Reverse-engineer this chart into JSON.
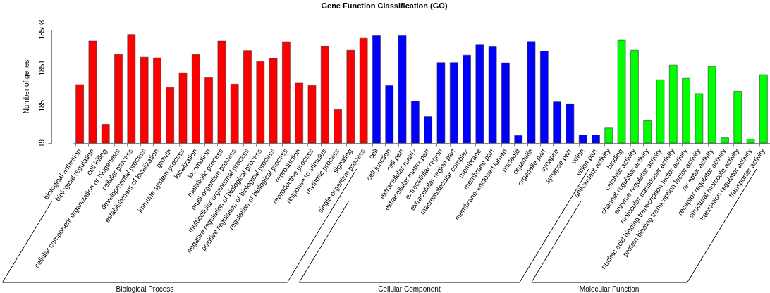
{
  "chart_data": {
    "type": "bar",
    "title": "Gene Function Classification (GO)",
    "ylabel": "Number of genes",
    "categories": [
      "biological adhesion",
      "biological regulation",
      "cell killing",
      "cellular component organization or biogenesis",
      "cellular process",
      "developmental process",
      "establishment of localization",
      "growth",
      "immune system process",
      "localization",
      "locomotion",
      "metabolic process",
      "multi-organism process",
      "multicellular organismal process",
      "negative regulation of biological process",
      "positive regulation of biological process",
      "regulation of biological process",
      "reproduction",
      "reproductive process",
      "response to stimulus",
      "rhythmic process",
      "signaling",
      "single-organism process",
      "cell",
      "cell junction",
      "cell part",
      "extracellular matrix",
      "extracellular matrix part",
      "extracellular region",
      "extracellular region part",
      "macromolecular complex",
      "membrane",
      "membrane part",
      "membrane-enclosed lumen",
      "nucleoid",
      "organelle",
      "organelle part",
      "synapse",
      "synapse part",
      "virion",
      "virion part",
      "antioxidant activity",
      "binding",
      "catalytic activity",
      "channel regulator activity",
      "enzyme regulator activity",
      "molecular transducer activity",
      "nucleic acid binding transcription factor activity",
      "protein binding transcription factor activity",
      "receptor activity",
      "receptor regulator activity",
      "structural molecule activity",
      "translation regulator activity",
      "transporter activity"
    ],
    "series": [
      {
        "color": "#ff0000",
        "values": [
          660,
          9300,
          59,
          4100,
          13900,
          3470,
          3330,
          550,
          1350,
          4100,
          990,
          9300,
          680,
          5200,
          2680,
          3200,
          8900,
          720,
          620,
          6600,
          145,
          5300,
          11000,
          null,
          null,
          null,
          null,
          null,
          null,
          null,
          null,
          null,
          null,
          null,
          null,
          null,
          null,
          null,
          null,
          null,
          null,
          null,
          null,
          null,
          null,
          null,
          null,
          null,
          null,
          null,
          null,
          null,
          null,
          null
        ]
      },
      {
        "color": "#0000ff",
        "values": [
          null,
          null,
          null,
          null,
          null,
          null,
          null,
          null,
          null,
          null,
          null,
          null,
          null,
          null,
          null,
          null,
          null,
          null,
          null,
          null,
          null,
          null,
          null,
          12900,
          620,
          12900,
          240,
          94,
          2500,
          2500,
          3950,
          7300,
          6500,
          2460,
          30,
          9000,
          5000,
          230,
          205,
          31,
          31,
          null,
          null,
          null,
          null,
          null,
          null,
          null,
          null,
          null,
          null,
          null,
          null,
          null
        ]
      },
      {
        "color": "#00ff00",
        "values": [
          null,
          null,
          null,
          null,
          null,
          null,
          null,
          null,
          null,
          null,
          null,
          null,
          null,
          null,
          null,
          null,
          null,
          null,
          null,
          null,
          null,
          null,
          null,
          null,
          null,
          null,
          null,
          null,
          null,
          null,
          null,
          null,
          null,
          null,
          null,
          null,
          null,
          null,
          null,
          null,
          null,
          47,
          9700,
          5300,
          73,
          880,
          2170,
          960,
          380,
          1990,
          26,
          440,
          24,
          1200
        ]
      }
    ],
    "annotations": [
      "Biological Process",
      "Cellular Component",
      "Molecular Function"
    ],
    "ylim": [
      19,
      18508
    ],
    "yticks": [
      19,
      185,
      1851,
      18508
    ],
    "log": true,
    "grid": false,
    "legend": false
  }
}
